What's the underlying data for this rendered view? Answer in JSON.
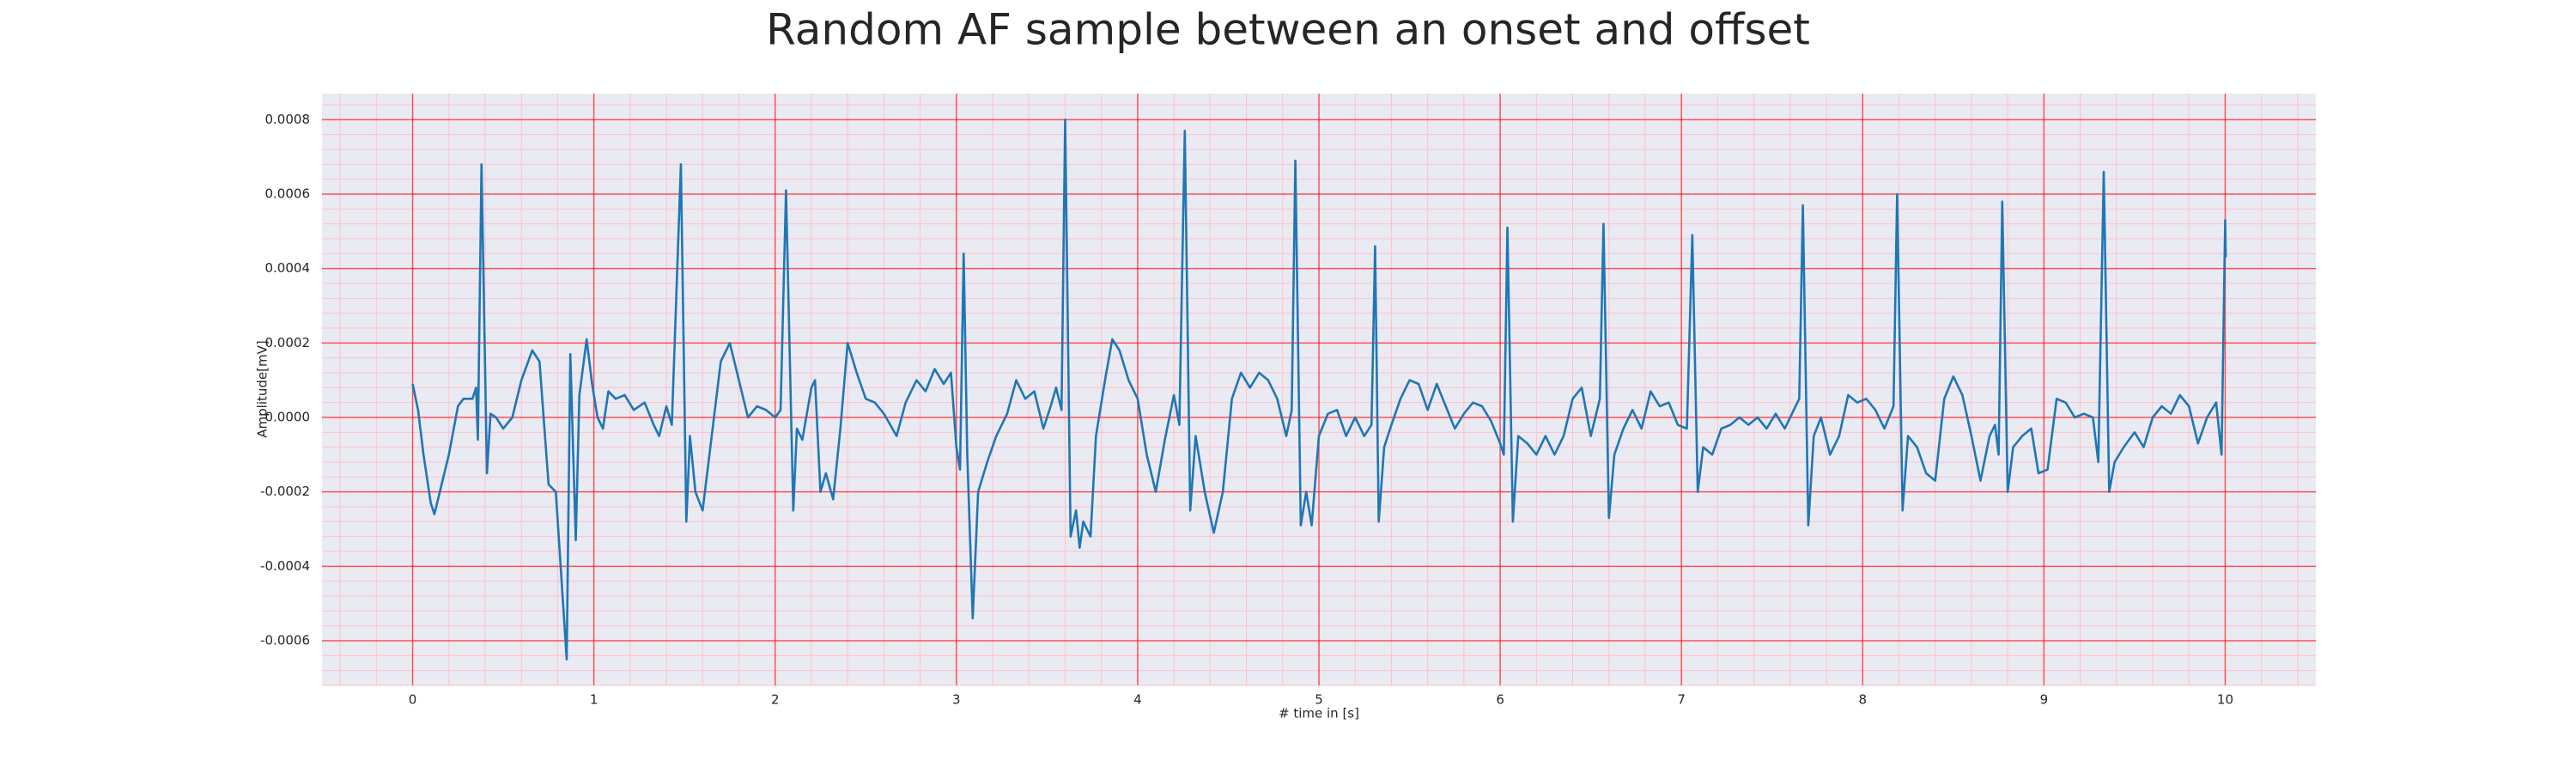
{
  "chart_data": {
    "type": "line",
    "title": "Random AF sample between an onset and offset",
    "xlabel": "# time in [s]",
    "ylabel": "Amplitude[mV]",
    "color": "#1f77b4",
    "grid": true,
    "minor_grid": true,
    "xlim": [
      -0.5,
      10.5
    ],
    "xticks": [
      0,
      1,
      2,
      3,
      4,
      5,
      6,
      7,
      8,
      9,
      10
    ],
    "ylim": [
      -0.00072,
      0.00087
    ],
    "yticks": [
      {
        "value": 0.0008,
        "label": "0.0008"
      },
      {
        "value": 0.0006,
        "label": "0.0006"
      },
      {
        "value": 0.0004,
        "label": "0.0004"
      },
      {
        "value": 0.0002,
        "label": "0.0002"
      },
      {
        "value": 0,
        "label": "0.0000"
      },
      {
        "value": -0.0002,
        "label": "-0.0002"
      },
      {
        "value": -0.0004,
        "label": "-0.0004"
      },
      {
        "value": -0.0006,
        "label": "-0.0006"
      }
    ],
    "x": [
      0,
      0.03,
      0.06,
      0.1,
      0.12,
      0.15,
      0.2,
      0.25,
      0.28,
      0.33,
      0.35,
      0.36,
      0.38,
      0.41,
      0.43,
      0.46,
      0.5,
      0.55,
      0.6,
      0.66,
      0.7,
      0.75,
      0.79,
      0.83,
      0.85,
      0.87,
      0.9,
      0.92,
      0.96,
      0.99,
      1.02,
      1.05,
      1.08,
      1.12,
      1.17,
      1.22,
      1.28,
      1.33,
      1.36,
      1.4,
      1.43,
      1.48,
      1.51,
      1.53,
      1.56,
      1.6,
      1.65,
      1.7,
      1.75,
      1.8,
      1.85,
      1.9,
      1.95,
      2.0,
      2.03,
      2.06,
      2.1,
      2.12,
      2.15,
      2.2,
      2.22,
      2.25,
      2.28,
      2.32,
      2.36,
      2.4,
      2.45,
      2.5,
      2.55,
      2.6,
      2.67,
      2.72,
      2.78,
      2.83,
      2.88,
      2.93,
      2.97,
      3.0,
      3.02,
      3.04,
      3.06,
      3.09,
      3.12,
      3.17,
      3.22,
      3.28,
      3.33,
      3.38,
      3.43,
      3.48,
      3.52,
      3.55,
      3.58,
      3.6,
      3.63,
      3.66,
      3.68,
      3.7,
      3.74,
      3.77,
      3.82,
      3.86,
      3.9,
      3.95,
      4.0,
      4.05,
      4.1,
      4.15,
      4.2,
      4.23,
      4.26,
      4.29,
      4.32,
      4.37,
      4.42,
      4.47,
      4.52,
      4.57,
      4.62,
      4.67,
      4.72,
      4.77,
      4.82,
      4.85,
      4.87,
      4.9,
      4.93,
      4.96,
      5.0,
      5.05,
      5.1,
      5.15,
      5.2,
      5.25,
      5.29,
      5.31,
      5.33,
      5.36,
      5.4,
      5.45,
      5.5,
      5.55,
      5.6,
      5.65,
      5.7,
      5.75,
      5.8,
      5.85,
      5.9,
      5.95,
      6.0,
      6.02,
      6.04,
      6.07,
      6.1,
      6.15,
      6.2,
      6.25,
      6.3,
      6.35,
      6.4,
      6.45,
      6.5,
      6.55,
      6.57,
      6.6,
      6.63,
      6.68,
      6.73,
      6.78,
      6.83,
      6.88,
      6.93,
      6.98,
      7.03,
      7.06,
      7.09,
      7.12,
      7.17,
      7.22,
      7.27,
      7.32,
      7.37,
      7.42,
      7.47,
      7.52,
      7.57,
      7.62,
      7.65,
      7.67,
      7.7,
      7.73,
      7.77,
      7.82,
      7.87,
      7.92,
      7.97,
      8.02,
      8.07,
      8.12,
      8.17,
      8.19,
      8.22,
      8.25,
      8.3,
      8.35,
      8.4,
      8.45,
      8.5,
      8.55,
      8.6,
      8.65,
      8.7,
      8.73,
      8.75,
      8.77,
      8.8,
      8.83,
      8.88,
      8.93,
      8.97,
      9.02,
      9.07,
      9.12,
      9.17,
      9.22,
      9.27,
      9.3,
      9.33,
      9.36,
      9.39,
      9.44,
      9.5,
      9.55,
      9.6,
      9.65,
      9.7,
      9.75,
      9.8,
      9.85,
      9.9,
      9.95,
      9.98,
      10.0,
      10.003
    ],
    "values": [
      9e-05,
      2e-05,
      -0.0001,
      -0.00023,
      -0.00026,
      -0.0002,
      -0.0001,
      3e-05,
      5e-05,
      5e-05,
      8e-05,
      -6e-05,
      0.00068,
      -0.00015,
      1e-05,
      0,
      -3e-05,
      0,
      0.0001,
      0.00018,
      0.00015,
      -0.00018,
      -0.0002,
      -0.0005,
      -0.00065,
      0.00017,
      -0.00033,
      6e-05,
      0.00021,
      9e-05,
      0,
      -3e-05,
      7e-05,
      5e-05,
      6e-05,
      2e-05,
      4e-05,
      -2e-05,
      -5e-05,
      3e-05,
      -2e-05,
      0.00068,
      -0.00028,
      -5e-05,
      -0.0002,
      -0.00025,
      -5e-05,
      0.00015,
      0.0002,
      0.0001,
      0,
      3e-05,
      2e-05,
      0,
      2e-05,
      0.00061,
      -0.00025,
      -3e-05,
      -6e-05,
      8e-05,
      0.0001,
      -0.0002,
      -0.00015,
      -0.00022,
      -3e-05,
      0.0002,
      0.00012,
      5e-05,
      4e-05,
      1e-05,
      -5e-05,
      4e-05,
      0.0001,
      7e-05,
      0.00013,
      9e-05,
      0.00012,
      -8e-05,
      -0.00014,
      0.00044,
      -0.0001,
      -0.00054,
      -0.0002,
      -0.00012,
      -5e-05,
      1e-05,
      0.0001,
      5e-05,
      7e-05,
      -3e-05,
      3e-05,
      8e-05,
      2e-05,
      0.0008,
      -0.00032,
      -0.00025,
      -0.00035,
      -0.00028,
      -0.00032,
      -5e-05,
      0.0001,
      0.00021,
      0.00018,
      0.0001,
      5e-05,
      -0.0001,
      -0.0002,
      -6e-05,
      6e-05,
      -2e-05,
      0.00077,
      -0.00025,
      -5e-05,
      -0.0002,
      -0.00031,
      -0.0002,
      5e-05,
      0.00012,
      8e-05,
      0.00012,
      0.0001,
      5e-05,
      -5e-05,
      2e-05,
      0.00069,
      -0.00029,
      -0.0002,
      -0.00029,
      -5e-05,
      1e-05,
      2e-05,
      -5e-05,
      0,
      -5e-05,
      -2e-05,
      0.00046,
      -0.00028,
      -8e-05,
      -2e-05,
      5e-05,
      0.0001,
      9e-05,
      2e-05,
      9e-05,
      3e-05,
      -3e-05,
      1e-05,
      4e-05,
      3e-05,
      -1e-05,
      -7e-05,
      -0.0001,
      0.00051,
      -0.00028,
      -5e-05,
      -7e-05,
      -0.0001,
      -5e-05,
      -0.0001,
      -5e-05,
      5e-05,
      8e-05,
      -5e-05,
      5e-05,
      0.00052,
      -0.00027,
      -0.0001,
      -3e-05,
      2e-05,
      -3e-05,
      7e-05,
      3e-05,
      4e-05,
      -2e-05,
      -3e-05,
      0.00049,
      -0.0002,
      -8e-05,
      -0.0001,
      -3e-05,
      -2e-05,
      0,
      -2e-05,
      0,
      -3e-05,
      1e-05,
      -3e-05,
      2e-05,
      5e-05,
      0.00057,
      -0.00029,
      -5e-05,
      0,
      -0.0001,
      -5e-05,
      6e-05,
      4e-05,
      5e-05,
      2e-05,
      -3e-05,
      3e-05,
      0.0006,
      -0.00025,
      -5e-05,
      -8e-05,
      -0.00015,
      -0.00017,
      5e-05,
      0.00011,
      6e-05,
      -5e-05,
      -0.00017,
      -5e-05,
      -2e-05,
      -0.0001,
      0.00058,
      -0.0002,
      -8e-05,
      -5e-05,
      -3e-05,
      -0.00015,
      -0.00014,
      5e-05,
      4e-05,
      0,
      1e-05,
      0,
      -0.00012,
      0.00066,
      -0.0002,
      -0.00012,
      -8e-05,
      -4e-05,
      -8e-05,
      0,
      3e-05,
      1e-05,
      6e-05,
      3e-05,
      -7e-05,
      0,
      4e-05,
      -0.0001,
      0.00053,
      0.00043
    ]
  }
}
